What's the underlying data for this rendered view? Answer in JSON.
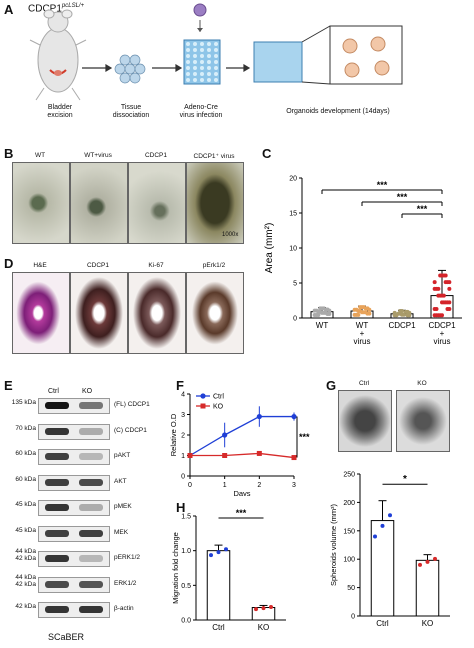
{
  "panelA": {
    "label": "A",
    "genotype": "CDCP1",
    "genotype_sup": "pcLSL/+",
    "steps": [
      "Bladder excision",
      "Tissue dissociation",
      "Adeno-Cre virus infection",
      "Organoids development (14days)"
    ]
  },
  "panelB": {
    "label": "B",
    "conditions": [
      "WT",
      "WT+virus",
      "CDCP1",
      "CDCP1⁺ virus"
    ],
    "magnification": "1000x"
  },
  "panelC": {
    "label": "C",
    "ylabel": "Area (mm²)",
    "yticks": [
      "0",
      "5",
      "10",
      "15",
      "20"
    ],
    "categories": [
      "WT",
      "WT + virus",
      "CDCP1",
      "CDCP1 + virus"
    ],
    "sig": [
      "***",
      "***",
      "***"
    ],
    "colors": [
      "#aaaaaa",
      "#e8a35a",
      "#a99b6a",
      "#d4242a"
    ]
  },
  "panelD": {
    "label": "D",
    "stains": [
      "H&E",
      "CDCP1",
      "Ki-67",
      "pErk1/2"
    ]
  },
  "panelE": {
    "label": "E",
    "lanes": [
      "Ctrl",
      "KO"
    ],
    "rows": [
      {
        "kda": "135 kDa",
        "name": "(FL) CDCP1"
      },
      {
        "kda": "70 kDa",
        "name": "(C) CDCP1"
      },
      {
        "kda": "60 kDa",
        "name": "pAKT"
      },
      {
        "kda": "60 kDa",
        "name": "AKT"
      },
      {
        "kda": "45 kDa",
        "name": "pMEK"
      },
      {
        "kda": "45 kDa",
        "name": "MEK"
      },
      {
        "kda": "44 kDa\n42 kDa",
        "name": "pERK1/2"
      },
      {
        "kda": "44 kDa\n42 kDa",
        "name": "ERK1/2"
      },
      {
        "kda": "42 kDa",
        "name": "β-actin"
      }
    ],
    "cell_line": "SCaBER"
  },
  "panelF": {
    "label": "F",
    "legend": [
      "Ctrl",
      "KO"
    ],
    "xlabel": "Days",
    "ylabel": "Relative O.D",
    "sig": "***",
    "xticks": [
      "0",
      "1",
      "2",
      "3"
    ],
    "yticks": [
      "0",
      "1",
      "2",
      "3",
      "4"
    ]
  },
  "panelG": {
    "label": "G",
    "images": [
      "Ctrl",
      "KO"
    ],
    "ylabel": "Spheroids volume (mm³)",
    "categories": [
      "Ctrl",
      "KO"
    ],
    "sig": "*",
    "yticks": [
      "0",
      "50",
      "100",
      "150",
      "200",
      "250"
    ]
  },
  "panelH": {
    "label": "H",
    "ylabel": "Migration fold change",
    "categories": [
      "Ctrl",
      "KO"
    ],
    "sig": "***",
    "yticks": [
      "0.0",
      "0.5",
      "1.0",
      "1.5"
    ]
  },
  "chart_data": [
    {
      "type": "bar",
      "id": "C",
      "categories": [
        "WT",
        "WT + virus",
        "CDCP1",
        "CDCP1 + virus"
      ],
      "values": [
        0.9,
        1.0,
        0.6,
        3.2
      ],
      "errors": [
        0.6,
        0.7,
        0.5,
        3.6
      ],
      "ylabel": "Area (mm²)",
      "ylim": [
        0,
        20
      ]
    },
    {
      "type": "line",
      "id": "F",
      "x": [
        0,
        1,
        2,
        3
      ],
      "series": [
        {
          "name": "Ctrl",
          "values": [
            1.0,
            2.0,
            2.9,
            2.9
          ],
          "errors": [
            0,
            0.6,
            0.5,
            0.2
          ],
          "color": "#1f3fd6"
        },
        {
          "name": "KO",
          "values": [
            1.0,
            1.0,
            1.1,
            0.9
          ],
          "errors": [
            0,
            0.1,
            0.1,
            0.1
          ],
          "color": "#d62a2a"
        }
      ],
      "xlabel": "Days",
      "ylabel": "Relative O.D",
      "ylim": [
        0,
        4
      ]
    },
    {
      "type": "bar",
      "id": "G",
      "categories": [
        "Ctrl",
        "KO"
      ],
      "values": [
        168,
        98
      ],
      "errors": [
        35,
        10
      ],
      "ylabel": "Spheroids volume (mm³)",
      "ylim": [
        0,
        250
      ]
    },
    {
      "type": "bar",
      "id": "H",
      "categories": [
        "Ctrl",
        "KO"
      ],
      "values": [
        1.0,
        0.18
      ],
      "errors": [
        0.08,
        0.03
      ],
      "ylabel": "Migration fold change",
      "ylim": [
        0,
        1.5
      ]
    }
  ]
}
